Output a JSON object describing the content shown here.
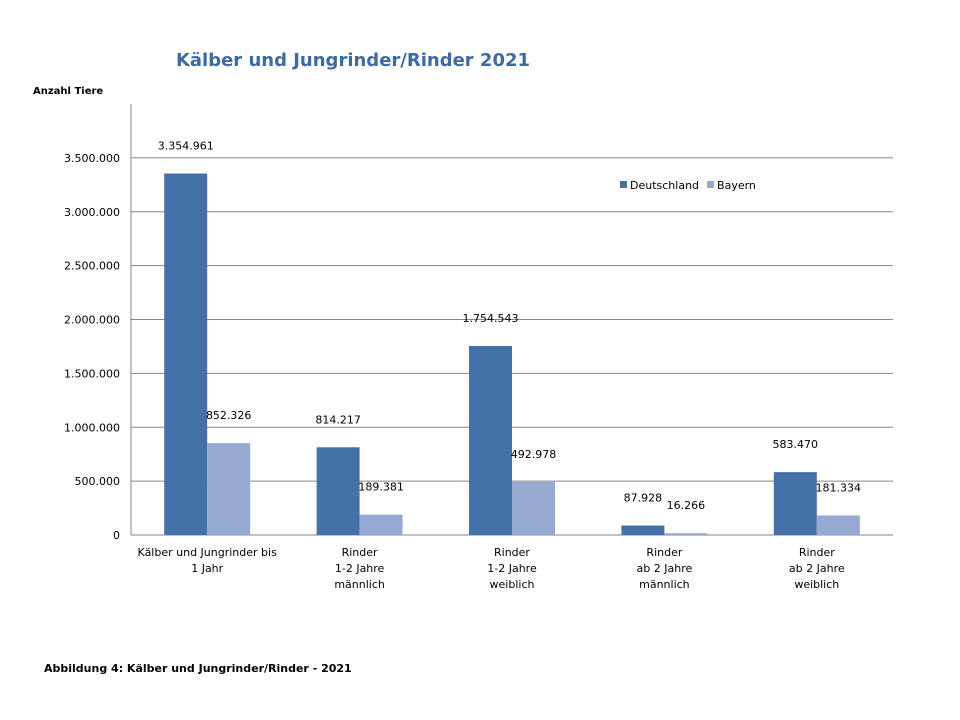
{
  "chart_data": {
    "type": "bar",
    "title": "Kälber und Jungrinder/Rinder  2021",
    "ylabel": "Anzahl Tiere",
    "xlabel": "",
    "ylim": [
      0,
      4000000
    ],
    "yticks": [
      0,
      500000,
      1000000,
      1500000,
      2000000,
      2500000,
      3000000,
      3500000
    ],
    "ytick_labels": [
      "0",
      "500.000",
      "1.000.000",
      "1.500.000",
      "2.000.000",
      "2.500.000",
      "3.000.000",
      "3.500.000"
    ],
    "grid": true,
    "legend_position": "top-right",
    "categories": [
      [
        "Kälber und Jungrinder bis",
        "1 Jahr"
      ],
      [
        "Rinder",
        "1-2 Jahre",
        "männlich"
      ],
      [
        "Rinder",
        "1-2 Jahre",
        "weiblich"
      ],
      [
        "Rinder",
        "ab 2 Jahre",
        "männlich"
      ],
      [
        "Rinder",
        "ab 2 Jahre",
        "weiblich"
      ]
    ],
    "series": [
      {
        "name": "Deutschland",
        "color": "#4472A8",
        "values": [
          3354961,
          814217,
          1754543,
          87928,
          583470
        ],
        "labels": [
          "3.354.961",
          "814.217",
          "1.754.543",
          "87.928",
          "583.470"
        ]
      },
      {
        "name": "Bayern",
        "color": "#95A9D1",
        "values": [
          852326,
          189381,
          492978,
          16266,
          181334
        ],
        "labels": [
          "852.326",
          "189.381",
          "492.978",
          "16.266",
          "181.334"
        ]
      }
    ]
  },
  "caption": "Abbildung 4: Kälber und Jungrinder/Rinder - 2021"
}
